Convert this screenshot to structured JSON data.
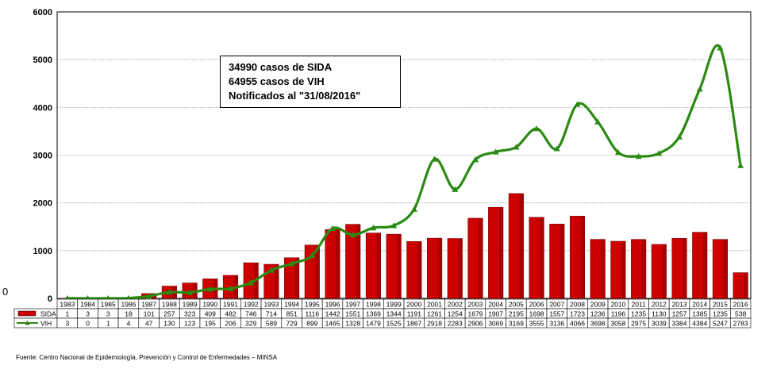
{
  "chart_data": {
    "type": "bar",
    "categories": [
      "1983",
      "1984",
      "1985",
      "1986",
      "1987",
      "1988",
      "1989",
      "1990",
      "1991",
      "1992",
      "1993",
      "1994",
      "1995",
      "1996",
      "1997",
      "1998",
      "1999",
      "2000",
      "2001",
      "2002",
      "2003",
      "2004",
      "2005",
      "2006",
      "2007",
      "2008",
      "2009",
      "2010",
      "2011",
      "2012",
      "2013",
      "2014",
      "2015",
      "2016"
    ],
    "series": [
      {
        "name": "SIDA",
        "type": "bar",
        "color": "#cc0000",
        "values": [
          1,
          3,
          3,
          18,
          101,
          257,
          323,
          409,
          482,
          746,
          714,
          851,
          1116,
          1442,
          1551,
          1369,
          1344,
          1191,
          1261,
          1254,
          1679,
          1907,
          2195,
          1698,
          1557,
          1723,
          1236,
          1196,
          1235,
          1130,
          1257,
          1385,
          1235,
          538
        ]
      },
      {
        "name": "VIH",
        "type": "line",
        "color": "#2a8a12",
        "values": [
          3,
          0,
          1,
          4,
          47,
          130,
          123,
          195,
          206,
          329,
          589,
          729,
          899,
          1465,
          1328,
          1479,
          1525,
          1867,
          2918,
          2283,
          2906,
          3069,
          3169,
          3555,
          3136,
          4066,
          3698,
          3058,
          2975,
          3039,
          3384,
          4384,
          5247,
          2783
        ]
      }
    ],
    "ylim": [
      0,
      6000
    ],
    "yticks": [
      "0",
      "1000",
      "2000",
      "3000",
      "4000",
      "5000",
      "6000"
    ],
    "stray_zero": "0",
    "grid": true,
    "legend": "data-table-below"
  },
  "annotation": {
    "line1": "34990 casos de SIDA",
    "line2": "64955 casos de VIH",
    "line3": "Notificados  al  \"31/08/2016\""
  },
  "source": "Fuente: Centro Nacional de Epidemiología, Prevención y Control de Enfermedades – MINSA"
}
